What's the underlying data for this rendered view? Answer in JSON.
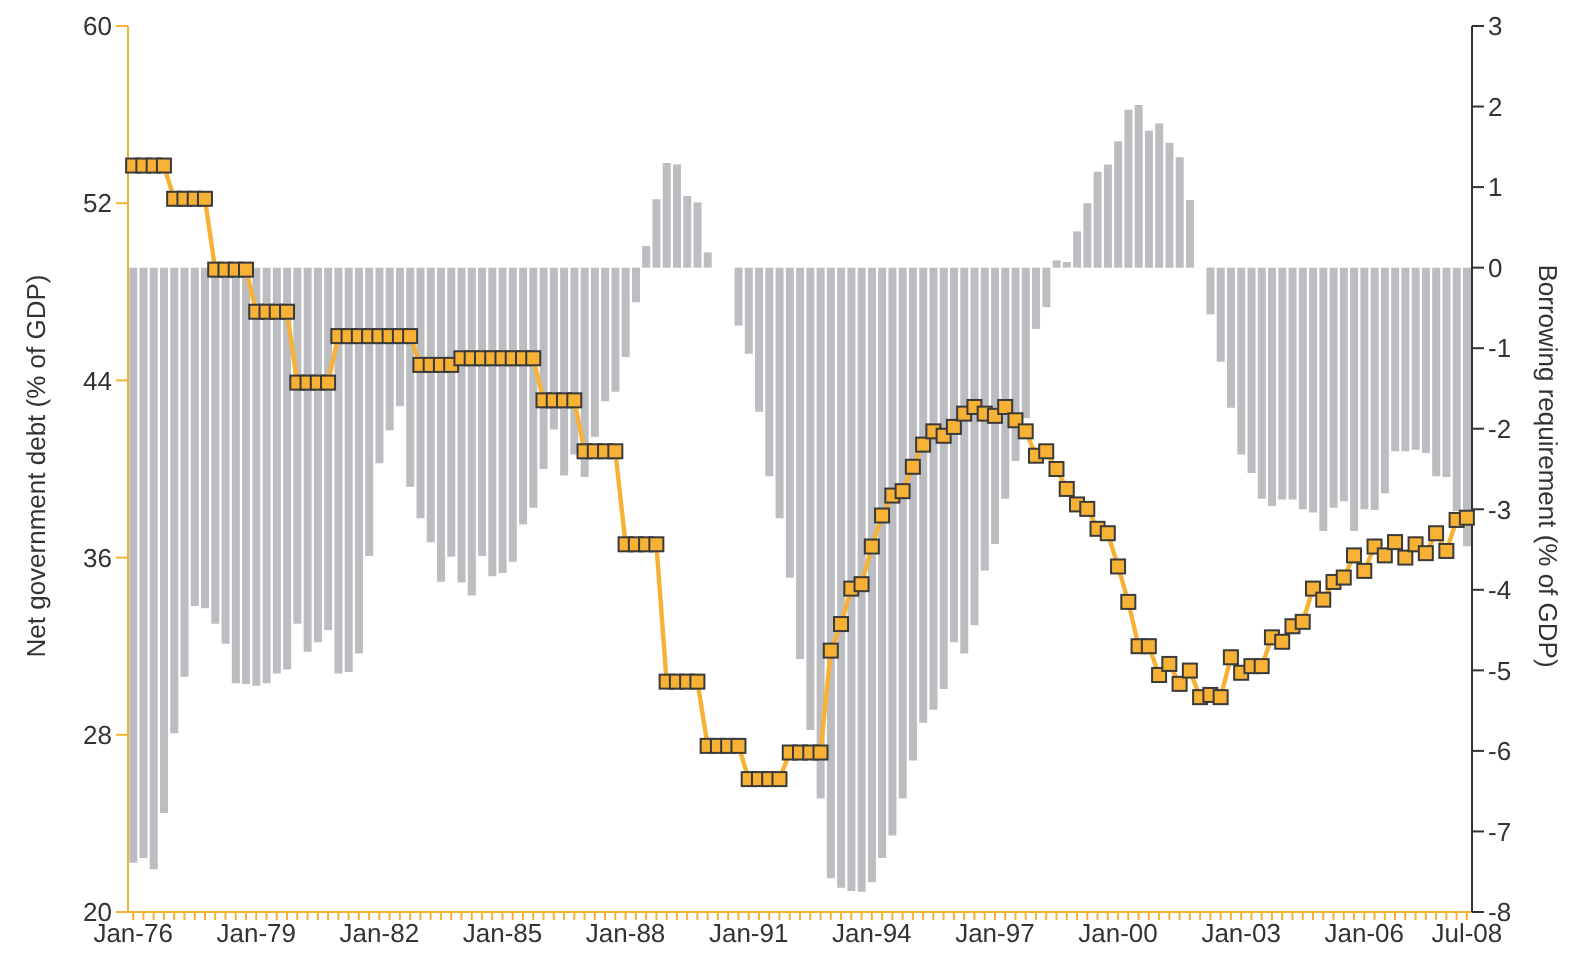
{
  "chart_data": {
    "type": "bar",
    "ylabel": "Net government debt (% of GDP)",
    "y2label": "Borrowing requirement (% of GDP)",
    "categories": [
      "Jan-76",
      null,
      null,
      null,
      null,
      null,
      null,
      null,
      null,
      null,
      null,
      null,
      "Jan-79",
      null,
      null,
      null,
      null,
      null,
      null,
      null,
      null,
      null,
      null,
      null,
      "Jan-82",
      null,
      null,
      null,
      null,
      null,
      null,
      null,
      null,
      null,
      null,
      null,
      "Jan-85",
      null,
      null,
      null,
      null,
      null,
      null,
      null,
      null,
      null,
      null,
      null,
      "Jan-88",
      null,
      null,
      null,
      null,
      null,
      null,
      null,
      null,
      null,
      null,
      null,
      "Jan-91",
      null,
      null,
      null,
      null,
      null,
      null,
      null,
      null,
      null,
      null,
      null,
      "Jan-94",
      null,
      null,
      null,
      null,
      null,
      null,
      null,
      null,
      null,
      null,
      null,
      "Jan-97",
      null,
      null,
      null,
      null,
      null,
      null,
      null,
      null,
      null,
      null,
      null,
      "Jan-00",
      null,
      null,
      null,
      null,
      null,
      null,
      null,
      null,
      null,
      null,
      null,
      "Jan-03",
      null,
      null,
      null,
      null,
      null,
      null,
      null,
      null,
      null,
      null,
      null,
      "Jan-06",
      null,
      null,
      null,
      null,
      null,
      null,
      null,
      null,
      null,
      "Jul-08"
    ],
    "series": [
      {
        "axis": "y2",
        "color": "#bcbdc1",
        "values": [
          -7.39,
          -7.33,
          -7.47,
          -6.77,
          -5.78,
          -5.08,
          -4.2,
          -4.23,
          -4.42,
          -4.67,
          -5.16,
          -5.17,
          -5.19,
          -5.16,
          -5.04,
          -4.99,
          -4.42,
          -4.77,
          -4.65,
          -4.5,
          -5.04,
          -5.02,
          -4.79,
          -3.58,
          -2.43,
          -2.02,
          -1.72,
          -2.72,
          -3.11,
          -3.41,
          -3.9,
          -3.59,
          -3.91,
          -4.07,
          -3.58,
          -3.83,
          -3.79,
          -3.65,
          -3.19,
          -2.98,
          -2.5,
          -2.01,
          -2.58,
          -2.32,
          -2.6,
          -2.1,
          -1.66,
          -1.54,
          -1.11,
          -0.43,
          0.27,
          0.85,
          1.3,
          1.28,
          0.89,
          0.81,
          0.19,
          0,
          0,
          -0.72,
          -1.07,
          -1.79,
          -2.59,
          -3.11,
          -3.85,
          -4.86,
          -5.74,
          -6.59,
          -7.58,
          -7.7,
          -7.74,
          -7.75,
          -7.63,
          -7.33,
          -7.05,
          -6.59,
          -6.12,
          -5.65,
          -5.49,
          -5.23,
          -4.65,
          -4.79,
          -4.44,
          -3.76,
          -3.43,
          -2.87,
          -2.4,
          -1.87,
          -0.76,
          -0.49,
          0.09,
          0.07,
          0.45,
          0.8,
          1.19,
          1.28,
          1.57,
          1.96,
          2.02,
          1.7,
          1.79,
          1.55,
          1.37,
          0.84,
          0,
          -0.58,
          -1.17,
          -1.74,
          -2.32,
          -2.55,
          -2.87,
          -2.96,
          -2.88,
          -2.88,
          -3.0,
          -3.04,
          -3.27,
          -2.98,
          -2.9,
          -3.27,
          -3.0,
          -3.01,
          -2.8,
          -2.28,
          -2.28,
          -2.26,
          -2.3,
          -2.59,
          -2.6,
          -3.02,
          -3.46
        ]
      },
      {
        "type": "line",
        "color": "#f7b235",
        "values": [
          53.7,
          53.7,
          53.7,
          53.7,
          52.2,
          52.2,
          52.2,
          52.2,
          49.0,
          49.0,
          49.0,
          49.0,
          47.1,
          47.1,
          47.1,
          47.1,
          43.9,
          43.9,
          43.9,
          43.9,
          46.0,
          46.0,
          46.0,
          46.0,
          46.0,
          46.0,
          46.0,
          46.0,
          44.7,
          44.7,
          44.7,
          44.7,
          45.0,
          45.0,
          45.0,
          45.0,
          45.0,
          45.0,
          45.0,
          45.0,
          43.1,
          43.1,
          43.1,
          43.1,
          40.8,
          40.8,
          40.8,
          40.8,
          36.6,
          36.6,
          36.6,
          36.6,
          30.4,
          30.4,
          30.4,
          30.4,
          27.5,
          27.5,
          27.5,
          27.5,
          26.0,
          26.0,
          26.0,
          26.0,
          27.2,
          27.2,
          27.2,
          27.2,
          31.8,
          33.0,
          34.6,
          34.8,
          36.5,
          37.9,
          38.8,
          39.0,
          40.1,
          41.1,
          41.7,
          41.5,
          41.9,
          42.5,
          42.8,
          42.5,
          42.4,
          42.8,
          42.2,
          41.7,
          40.6,
          40.8,
          40.0,
          39.1,
          38.4,
          38.2,
          37.3,
          37.1,
          35.6,
          34.0,
          32.0,
          32.0,
          30.7,
          31.2,
          30.3,
          30.9,
          29.7,
          29.8,
          29.7,
          31.5,
          30.8,
          31.1,
          31.1,
          32.4,
          32.2,
          32.9,
          33.1,
          34.6,
          34.1,
          34.9,
          35.1,
          36.1,
          35.4,
          36.5,
          36.1,
          36.7,
          36.0,
          36.6,
          36.2,
          37.1,
          36.3,
          37.7,
          37.8
        ]
      }
    ],
    "ylim": [
      20,
      60
    ],
    "yticks": [
      20,
      28,
      36,
      44,
      52,
      60
    ],
    "y2lim": [
      -8,
      3
    ],
    "y2ticks": [
      -8,
      -7,
      -6,
      -5,
      -4,
      -3,
      -2,
      -1,
      0,
      1,
      2,
      3
    ],
    "marker": "square",
    "line_style": "solid",
    "grid": false,
    "legend": false
  }
}
